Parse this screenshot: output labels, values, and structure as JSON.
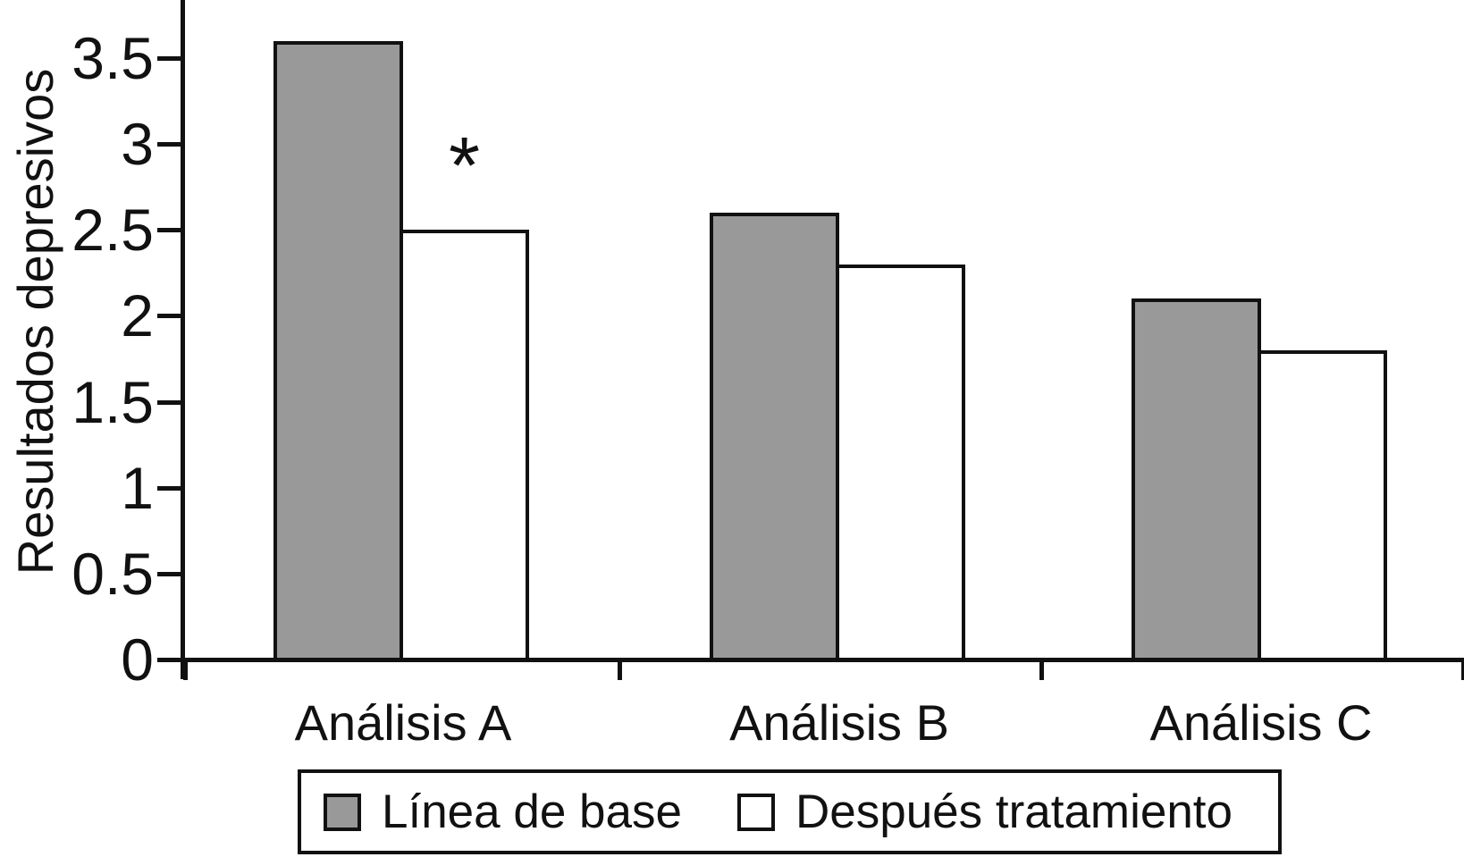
{
  "chart_data": {
    "type": "bar",
    "title": "",
    "xlabel": "",
    "ylabel": "Resultados depresivos",
    "categories": [
      "Análisis A",
      "Análisis B",
      "Análisis C"
    ],
    "series": [
      {
        "name": "Línea de base",
        "fill": "#999999",
        "values": [
          3.6,
          2.6,
          2.1
        ]
      },
      {
        "name": "Después tratamiento",
        "fill": "#ffffff",
        "values": [
          2.5,
          2.3,
          1.8
        ]
      }
    ],
    "y_ticks": [
      0,
      0.5,
      1,
      1.5,
      2,
      2.5,
      3,
      3.5
    ],
    "y_tick_labels": [
      "0",
      "0.5",
      "1",
      "1.5",
      "2",
      "2.5",
      "3",
      "3.5"
    ],
    "ylim": [
      0,
      3.84
    ],
    "grid": false,
    "legend_position": "bottom",
    "bar_edge_color": "#111111",
    "axis_color": "#111111",
    "annotations": [
      {
        "text": "*",
        "category_index": 0,
        "series_index": 1,
        "y": 2.95
      }
    ]
  }
}
